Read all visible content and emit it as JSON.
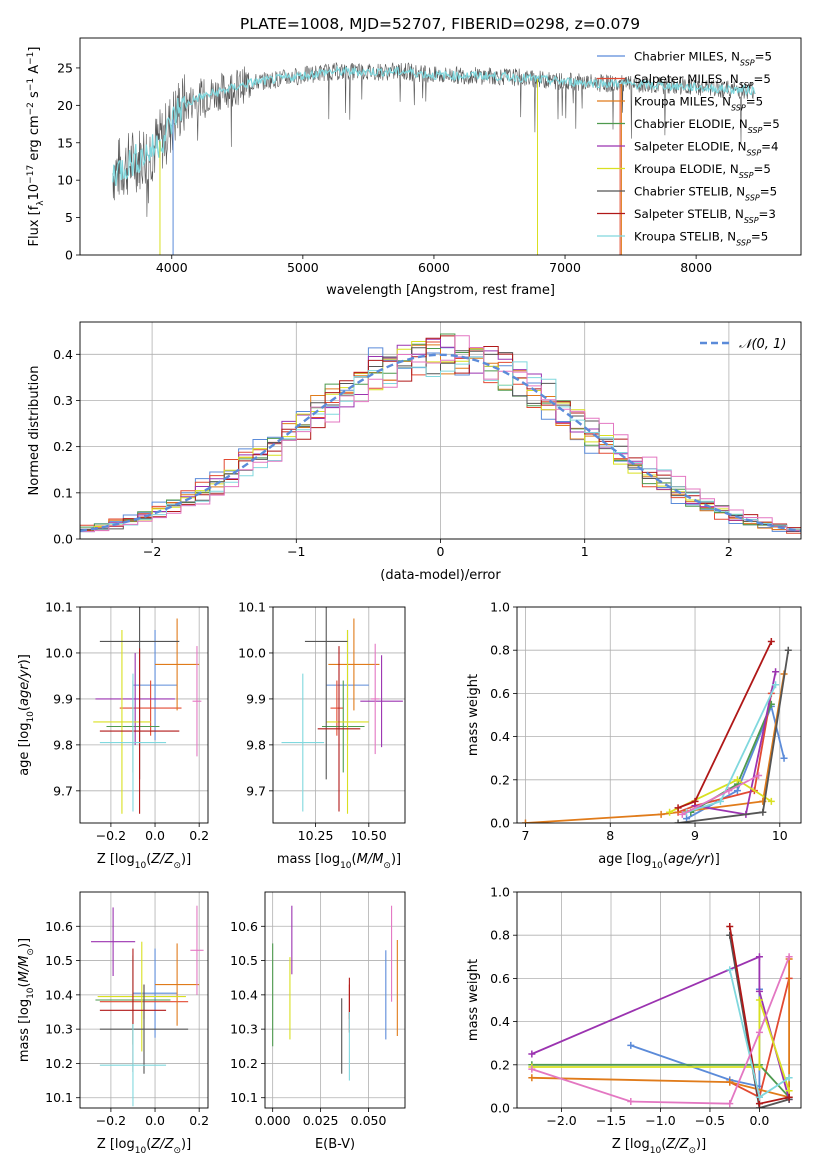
{
  "figure_title": "PLATE=1008, MJD=52707, FIBERID=0298, z=0.079",
  "model_colors": {
    "Chabrier MILES": "#5b8bd9",
    "Salpeter MILES": "#e24a33",
    "Kroupa MILES": "#e07b1a",
    "Chabrier ELODIE": "#4e9a4e",
    "Salpeter ELODIE": "#9b33b0",
    "Kroupa ELODIE": "#d9e021",
    "Chabrier STELIB": "#555555",
    "Salpeter STELIB": "#b01818",
    "Kroupa STELIB": "#80d8de",
    "extra pink": "#e377c2"
  },
  "chart_data": [
    {
      "id": "spectrum",
      "type": "line",
      "xlabel": "wavelength [Angstrom, rest frame]",
      "ylabel": "Flux [f_λ10^-17 erg cm^-2 s^-1 A^-1]",
      "xlim": [
        3300,
        8800
      ],
      "ylim": [
        0,
        29
      ],
      "xticks": [
        4000,
        5000,
        6000,
        7000,
        8000
      ],
      "yticks": [
        0,
        5,
        10,
        15,
        20,
        25
      ],
      "grid": false,
      "legend_position": "top-right",
      "legend": [
        {
          "name": "Chabrier MILES",
          "nssp": "5"
        },
        {
          "name": "Salpeter MILES",
          "nssp": "5"
        },
        {
          "name": "Kroupa MILES",
          "nssp": "5"
        },
        {
          "name": "Chabrier ELODIE",
          "nssp": "5"
        },
        {
          "name": "Salpeter ELODIE",
          "nssp": "4"
        },
        {
          "name": "Kroupa ELODIE",
          "nssp": "5"
        },
        {
          "name": "Chabrier STELIB",
          "nssp": "5"
        },
        {
          "name": "Salpeter STELIB",
          "nssp": "3"
        },
        {
          "name": "Kroupa STELIB",
          "nssp": "5"
        }
      ],
      "continuum": {
        "x": [
          3550,
          3700,
          3850,
          3950,
          4050,
          4200,
          4400,
          4600,
          4800,
          5000,
          5200,
          5500,
          5800,
          6000,
          6300,
          6600,
          6900,
          7200,
          7500,
          7800,
          8100,
          8400
        ],
        "y": [
          11,
          12.5,
          14,
          16,
          19.5,
          21,
          22,
          23,
          23.5,
          24,
          24.5,
          24.5,
          24.5,
          24,
          24,
          23.8,
          23.3,
          23,
          22.8,
          22.6,
          22.3,
          22
        ]
      }
    },
    {
      "id": "residuals",
      "type": "bar",
      "xlabel": "(data-model)/error",
      "ylabel": "Normed distribution",
      "xlim": [
        -2.5,
        2.5
      ],
      "ylim": [
        0,
        0.47
      ],
      "xticks": [
        -2,
        -1,
        0,
        1,
        2
      ],
      "yticks": [
        0.0,
        0.1,
        0.2,
        0.3,
        0.4
      ],
      "grid": true,
      "bin_width": 0.1,
      "legend_position": "top-right",
      "normal_label": "N(0,1)"
    },
    {
      "id": "age_vs_Z",
      "type": "scatter",
      "xlabel": "Z [log10(Z/Z☉)]",
      "ylabel": "age [log10(age/yr)]",
      "xlim": [
        -0.34,
        0.24
      ],
      "ylim": [
        9.63,
        10.1
      ],
      "xticks": [
        -0.2,
        0.0,
        0.2
      ],
      "yticks": [
        9.7,
        9.8,
        9.9,
        10.0,
        10.1
      ],
      "grid": true,
      "points": [
        {
          "model": "Chabrier MILES",
          "x": 0.0,
          "xerr": 0.1,
          "y": 9.93,
          "yerr": 0.12
        },
        {
          "model": "Salpeter MILES",
          "x": -0.02,
          "xerr": 0.14,
          "y": 9.88,
          "yerr": 0.06
        },
        {
          "model": "Kroupa MILES",
          "x": 0.1,
          "xerr": 0.1,
          "y": 9.975,
          "yerr": 0.1
        },
        {
          "model": "Chabrier ELODIE",
          "x": -0.1,
          "xerr": 0.12,
          "y": 9.84,
          "yerr": 0.1
        },
        {
          "model": "Salpeter ELODIE",
          "x": -0.09,
          "xerr": 0.18,
          "y": 9.9,
          "yerr": 0.1
        },
        {
          "model": "Kroupa ELODIE",
          "x": -0.15,
          "xerr": 0.13,
          "y": 9.85,
          "yerr": 0.2
        },
        {
          "model": "Chabrier STELIB",
          "x": -0.07,
          "xerr": 0.18,
          "y": 10.025,
          "yerr": 0.3
        },
        {
          "model": "Salpeter STELIB",
          "x": -0.07,
          "xerr": 0.18,
          "y": 9.83,
          "yerr": 0.18
        },
        {
          "model": "Kroupa STELIB",
          "x": -0.1,
          "xerr": 0.15,
          "y": 9.805,
          "yerr": 0.15
        },
        {
          "model": "extra pink",
          "x": 0.19,
          "xerr": 0.02,
          "y": 9.895,
          "yerr": 0.12
        }
      ]
    },
    {
      "id": "age_vs_mass",
      "type": "scatter",
      "xlabel": "mass [log10(M/M☉)]",
      "ylabel": "",
      "xlim": [
        10.05,
        10.67
      ],
      "ylim": [
        9.63,
        10.1
      ],
      "xticks": [
        10.25,
        10.5
      ],
      "yticks": [
        9.7,
        9.8,
        9.9,
        10.0,
        10.1
      ],
      "grid": true,
      "points": [
        {
          "model": "Chabrier MILES",
          "x": 10.4,
          "xerr": 0.1,
          "y": 9.93,
          "yerr": 0.12
        },
        {
          "model": "Salpeter MILES",
          "x": 10.35,
          "xerr": 0.03,
          "y": 9.88,
          "yerr": 0.06
        },
        {
          "model": "Kroupa MILES",
          "x": 10.43,
          "xerr": 0.12,
          "y": 9.975,
          "yerr": 0.1
        },
        {
          "model": "Chabrier ELODIE",
          "x": 10.38,
          "xerr": 0.1,
          "y": 9.84,
          "yerr": 0.1
        },
        {
          "model": "Salpeter ELODIE",
          "x": 10.56,
          "xerr": 0.1,
          "y": 9.895,
          "yerr": 0.1
        },
        {
          "model": "Kroupa ELODIE",
          "x": 10.4,
          "xerr": 0.1,
          "y": 9.85,
          "yerr": 0.2
        },
        {
          "model": "Chabrier STELIB",
          "x": 10.3,
          "xerr": 0.1,
          "y": 10.025,
          "yerr": 0.3
        },
        {
          "model": "Salpeter STELIB",
          "x": 10.36,
          "xerr": 0.1,
          "y": 9.835,
          "yerr": 0.18
        },
        {
          "model": "Kroupa STELIB",
          "x": 10.19,
          "xerr": 0.1,
          "y": 9.805,
          "yerr": 0.15
        },
        {
          "model": "extra pink",
          "x": 10.53,
          "xerr": 0.02,
          "y": 9.9,
          "yerr": 0.12
        }
      ]
    },
    {
      "id": "weight_vs_age",
      "type": "line",
      "xlabel": "age [log10(age/yr)]",
      "ylabel": "mass weight",
      "xlim": [
        6.9,
        10.25
      ],
      "ylim": [
        0,
        1.0
      ],
      "xticks": [
        7,
        8,
        9,
        10
      ],
      "yticks": [
        0.0,
        0.2,
        0.4,
        0.6,
        0.8,
        1.0
      ],
      "grid": true,
      "series": [
        {
          "model": "Chabrier MILES",
          "x": [
            8.9,
            9.5,
            9.9,
            10.05
          ],
          "y": [
            0.02,
            0.15,
            0.54,
            0.3
          ]
        },
        {
          "model": "Salpeter MILES",
          "x": [
            8.8,
            9.0,
            9.7,
            9.9
          ],
          "y": [
            0.05,
            0.08,
            0.15,
            0.6
          ]
        },
        {
          "model": "Kroupa MILES",
          "x": [
            7.0,
            8.6,
            9.8,
            10.05
          ],
          "y": [
            0.0,
            0.04,
            0.1,
            0.69
          ]
        },
        {
          "model": "Chabrier ELODIE",
          "x": [
            8.95,
            9.5,
            9.9
          ],
          "y": [
            0.05,
            0.18,
            0.55
          ]
        },
        {
          "model": "Salpeter ELODIE",
          "x": [
            9.0,
            9.6,
            9.95
          ],
          "y": [
            0.08,
            0.04,
            0.7
          ]
        },
        {
          "model": "Kroupa ELODIE",
          "x": [
            8.7,
            9.5,
            9.9
          ],
          "y": [
            0.05,
            0.2,
            0.1
          ]
        },
        {
          "model": "Chabrier STELIB",
          "x": [
            8.8,
            9.8,
            10.1
          ],
          "y": [
            0.0,
            0.05,
            0.8
          ]
        },
        {
          "model": "Salpeter STELIB",
          "x": [
            8.8,
            9.0,
            9.9
          ],
          "y": [
            0.07,
            0.1,
            0.84
          ]
        },
        {
          "model": "Kroupa STELIB",
          "x": [
            8.9,
            9.3,
            9.95
          ],
          "y": [
            0.05,
            0.1,
            0.64
          ]
        },
        {
          "model": "extra pink",
          "x": [
            8.85,
            9.4,
            9.75
          ],
          "y": [
            0.04,
            0.15,
            0.22
          ]
        }
      ]
    },
    {
      "id": "mass_vs_Z",
      "type": "scatter",
      "xlabel": "Z [log10(Z/Z☉)]",
      "ylabel": "mass [log10(M/M☉)]",
      "xlim": [
        -0.34,
        0.24
      ],
      "ylim": [
        10.07,
        10.7
      ],
      "xticks": [
        -0.2,
        0.0,
        0.2
      ],
      "yticks": [
        10.1,
        10.2,
        10.3,
        10.4,
        10.5,
        10.6
      ],
      "grid": true,
      "points": [
        {
          "model": "Chabrier MILES",
          "x": 0.0,
          "xerr": 0.1,
          "y": 10.405,
          "yerr": 0.13
        },
        {
          "model": "Salpeter MILES",
          "x": -0.05,
          "xerr": 0.2,
          "y": 10.38,
          "yerr": 0.05
        },
        {
          "model": "Kroupa MILES",
          "x": 0.1,
          "xerr": 0.1,
          "y": 10.43,
          "yerr": 0.12
        },
        {
          "model": "Chabrier ELODIE",
          "x": -0.1,
          "xerr": 0.17,
          "y": 10.385,
          "yerr": 0.13
        },
        {
          "model": "Salpeter ELODIE",
          "x": -0.19,
          "xerr": 0.1,
          "y": 10.555,
          "yerr": 0.1
        },
        {
          "model": "Kroupa ELODIE",
          "x": -0.06,
          "xerr": 0.2,
          "y": 10.395,
          "yerr": 0.16
        },
        {
          "model": "Chabrier STELIB",
          "x": -0.05,
          "xerr": 0.2,
          "y": 10.3,
          "yerr": 0.13
        },
        {
          "model": "Salpeter STELIB",
          "x": -0.1,
          "xerr": 0.15,
          "y": 10.355,
          "yerr": 0.18
        },
        {
          "model": "Kroupa STELIB",
          "x": -0.1,
          "xerr": 0.15,
          "y": 10.195,
          "yerr": 0.12
        },
        {
          "model": "extra pink",
          "x": 0.19,
          "xerr": 0.03,
          "y": 10.53,
          "yerr": 0.13
        }
      ]
    },
    {
      "id": "mass_vs_ebv",
      "type": "scatter",
      "xlabel": "E(B-V)",
      "ylabel": "",
      "xlim": [
        -0.004,
        0.069
      ],
      "ylim": [
        10.07,
        10.7
      ],
      "xticks": [
        0.0,
        0.025,
        0.05
      ],
      "yticks": [
        10.1,
        10.2,
        10.3,
        10.4,
        10.5,
        10.6
      ],
      "grid": true,
      "points": [
        {
          "model": "Chabrier MILES",
          "x": 0.059,
          "y": 10.4,
          "yerr": 0.13
        },
        {
          "model": "Salpeter MILES",
          "x": 0.04,
          "y": 10.38,
          "yerr": 0.05
        },
        {
          "model": "Kroupa MILES",
          "x": 0.065,
          "y": 10.42,
          "yerr": 0.14
        },
        {
          "model": "Chabrier ELODIE",
          "x": 0.0,
          "y": 10.4,
          "yerr": 0.15
        },
        {
          "model": "Salpeter ELODIE",
          "x": 0.01,
          "y": 10.56,
          "yerr": 0.1
        },
        {
          "model": "Kroupa ELODIE",
          "x": 0.009,
          "y": 10.39,
          "yerr": 0.12
        },
        {
          "model": "Chabrier STELIB",
          "x": 0.036,
          "y": 10.28,
          "yerr": 0.11
        },
        {
          "model": "Salpeter STELIB",
          "x": 0.04,
          "y": 10.37,
          "yerr": 0.08
        },
        {
          "model": "Kroupa STELIB",
          "x": 0.04,
          "y": 10.25,
          "yerr": 0.1
        },
        {
          "model": "extra pink",
          "x": 0.062,
          "y": 10.52,
          "yerr": 0.14
        }
      ]
    },
    {
      "id": "weight_vs_Z",
      "type": "line",
      "xlabel": "Z [log10(Z/Z☉)]",
      "ylabel": "mass weight",
      "xlim": [
        -2.45,
        0.42
      ],
      "ylim": [
        0,
        1.0
      ],
      "xticks": [
        -2.0,
        -1.5,
        -1.0,
        -0.5,
        0.0
      ],
      "yticks": [
        0.0,
        0.2,
        0.4,
        0.6,
        0.8,
        1.0
      ],
      "grid": true,
      "series": [
        {
          "model": "Chabrier MILES",
          "x": [
            -1.3,
            -0.3,
            0.0,
            0.0
          ],
          "y": [
            0.29,
            0.13,
            0.1,
            0.55
          ]
        },
        {
          "model": "Salpeter MILES",
          "x": [
            -0.3,
            0.0,
            0.3
          ],
          "y": [
            0.12,
            0.05,
            0.6
          ]
        },
        {
          "model": "Kroupa MILES",
          "x": [
            -2.3,
            -0.3,
            0.3,
            0.3
          ],
          "y": [
            0.14,
            0.12,
            0.05,
            0.69
          ]
        },
        {
          "model": "Chabrier ELODIE",
          "x": [
            -2.3,
            0.0,
            0.3
          ],
          "y": [
            0.2,
            0.2,
            0.05
          ]
        },
        {
          "model": "Salpeter ELODIE",
          "x": [
            -2.3,
            0.0,
            0.0,
            0.3
          ],
          "y": [
            0.25,
            0.7,
            0.54,
            0.04
          ]
        },
        {
          "model": "Kroupa ELODIE",
          "x": [
            -2.3,
            0.0,
            0.0,
            0.3
          ],
          "y": [
            0.19,
            0.19,
            0.5,
            0.08
          ]
        },
        {
          "model": "Chabrier STELIB",
          "x": [
            -0.3,
            0.0,
            0.3
          ],
          "y": [
            0.8,
            0.0,
            0.04
          ]
        },
        {
          "model": "Salpeter STELIB",
          "x": [
            -0.3,
            0.0,
            0.3
          ],
          "y": [
            0.84,
            0.02,
            0.05
          ]
        },
        {
          "model": "Kroupa STELIB",
          "x": [
            -0.3,
            0.0,
            0.3
          ],
          "y": [
            0.64,
            0.05,
            0.14
          ]
        },
        {
          "model": "extra pink",
          "x": [
            -2.3,
            -1.3,
            -0.3,
            0.0,
            0.3
          ],
          "y": [
            0.18,
            0.03,
            0.02,
            0.35,
            0.7
          ]
        }
      ]
    }
  ]
}
